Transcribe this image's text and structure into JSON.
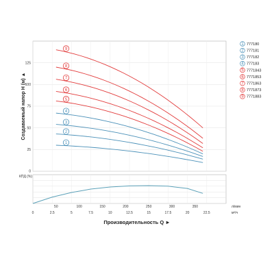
{
  "chart_data": {
    "type": "line",
    "ylabel": "Создаваемый напор H (м) ▲",
    "xlabel": "Производительность Q ►",
    "eff_label": "КПД (%)",
    "unit_top": "л/мин",
    "unit_bottom": "м³/ч",
    "head_ylim": [
      0,
      150
    ],
    "head_yticks": [
      "0",
      "25",
      "50",
      "75",
      "100",
      "125"
    ],
    "eff_ylim": [
      0,
      100
    ],
    "eff_yticks": [
      "0",
      "20",
      "40",
      "60",
      "80"
    ],
    "flow_lpm_ticks": [
      "50",
      "100",
      "150",
      "200",
      "250",
      "300",
      "350"
    ],
    "flow_m3h_ticks": [
      "0",
      "2.5",
      "5",
      "7.5",
      "10",
      "12.5",
      "15",
      "17.5",
      "20",
      "22.5"
    ],
    "grid": true,
    "legend_position": "right",
    "colors": {
      "blue": "#4a90b8",
      "red": "#e23b3b",
      "efficiency": "#5aa0b8"
    },
    "series": [
      {
        "name": "777180",
        "marker": "1",
        "color": "#4a90b8",
        "x": [
          3,
          22
        ],
        "y": [
          30,
          10
        ]
      },
      {
        "name": "777181",
        "marker": "2",
        "color": "#4a90b8",
        "x": [
          3,
          22
        ],
        "y": [
          43,
          14
        ]
      },
      {
        "name": "777182",
        "marker": "3",
        "color": "#4a90b8",
        "x": [
          3,
          22
        ],
        "y": [
          54,
          17
        ]
      },
      {
        "name": "777183",
        "marker": "4",
        "color": "#4a90b8",
        "x": [
          3,
          22
        ],
        "y": [
          67,
          20
        ]
      },
      {
        "name": "7771843",
        "marker": "5",
        "color": "#e23b3b",
        "x": [
          3,
          22
        ],
        "y": [
          81,
          23
        ]
      },
      {
        "name": "7771853",
        "marker": "6",
        "color": "#e23b3b",
        "x": [
          3,
          22
        ],
        "y": [
          92,
          27
        ]
      },
      {
        "name": "7771863",
        "marker": "7",
        "color": "#e23b3b",
        "x": [
          3,
          22
        ],
        "y": [
          106,
          32
        ]
      },
      {
        "name": "7771873",
        "marker": "8",
        "color": "#e23b3b",
        "x": [
          3,
          22
        ],
        "y": [
          120,
          38
        ]
      },
      {
        "name": "7771883",
        "marker": "9",
        "color": "#e23b3b",
        "x": [
          3,
          22
        ],
        "y": [
          140,
          50
        ]
      }
    ],
    "efficiency": {
      "x": [
        0,
        2.5,
        5,
        7.5,
        10,
        12.5,
        15,
        17.5,
        20,
        22
      ],
      "y": [
        0,
        22,
        38,
        50,
        57,
        61,
        62,
        60,
        52,
        35
      ]
    }
  }
}
